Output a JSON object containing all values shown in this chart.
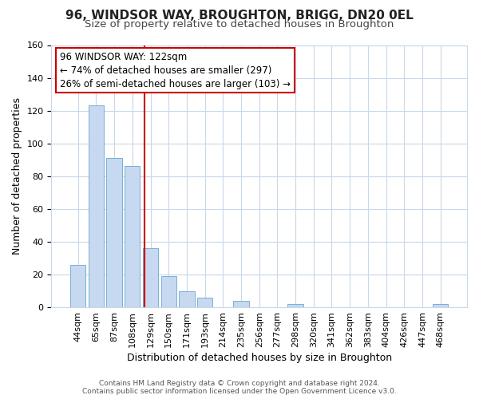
{
  "title": "96, WINDSOR WAY, BROUGHTON, BRIGG, DN20 0EL",
  "subtitle": "Size of property relative to detached houses in Broughton",
  "xlabel": "Distribution of detached houses by size in Broughton",
  "ylabel": "Number of detached properties",
  "categories": [
    "44sqm",
    "65sqm",
    "87sqm",
    "108sqm",
    "129sqm",
    "150sqm",
    "171sqm",
    "193sqm",
    "214sqm",
    "235sqm",
    "256sqm",
    "277sqm",
    "298sqm",
    "320sqm",
    "341sqm",
    "362sqm",
    "383sqm",
    "404sqm",
    "426sqm",
    "447sqm",
    "468sqm"
  ],
  "values": [
    26,
    123,
    91,
    86,
    36,
    19,
    10,
    6,
    0,
    4,
    0,
    0,
    2,
    0,
    0,
    0,
    0,
    0,
    0,
    0,
    2
  ],
  "bar_color": "#c6d9f0",
  "bar_edge_color": "#7bafd4",
  "reference_line_color": "#cc0000",
  "reference_line_x": 3.65,
  "annotation_title": "96 WINDSOR WAY: 122sqm",
  "annotation_line1": "← 74% of detached houses are smaller (297)",
  "annotation_line2": "26% of semi-detached houses are larger (103) →",
  "annotation_box_color": "#ffffff",
  "annotation_box_edge": "#cc0000",
  "ylim": [
    0,
    160
  ],
  "yticks": [
    0,
    20,
    40,
    60,
    80,
    100,
    120,
    140,
    160
  ],
  "footer_line1": "Contains HM Land Registry data © Crown copyright and database right 2024.",
  "footer_line2": "Contains public sector information licensed under the Open Government Licence v3.0.",
  "background_color": "#ffffff",
  "grid_color": "#c8d8e8",
  "title_fontsize": 11,
  "subtitle_fontsize": 9.5,
  "ylabel_fontsize": 9,
  "xlabel_fontsize": 9,
  "tick_fontsize": 8,
  "annot_fontsize": 8.5,
  "footer_fontsize": 6.5
}
